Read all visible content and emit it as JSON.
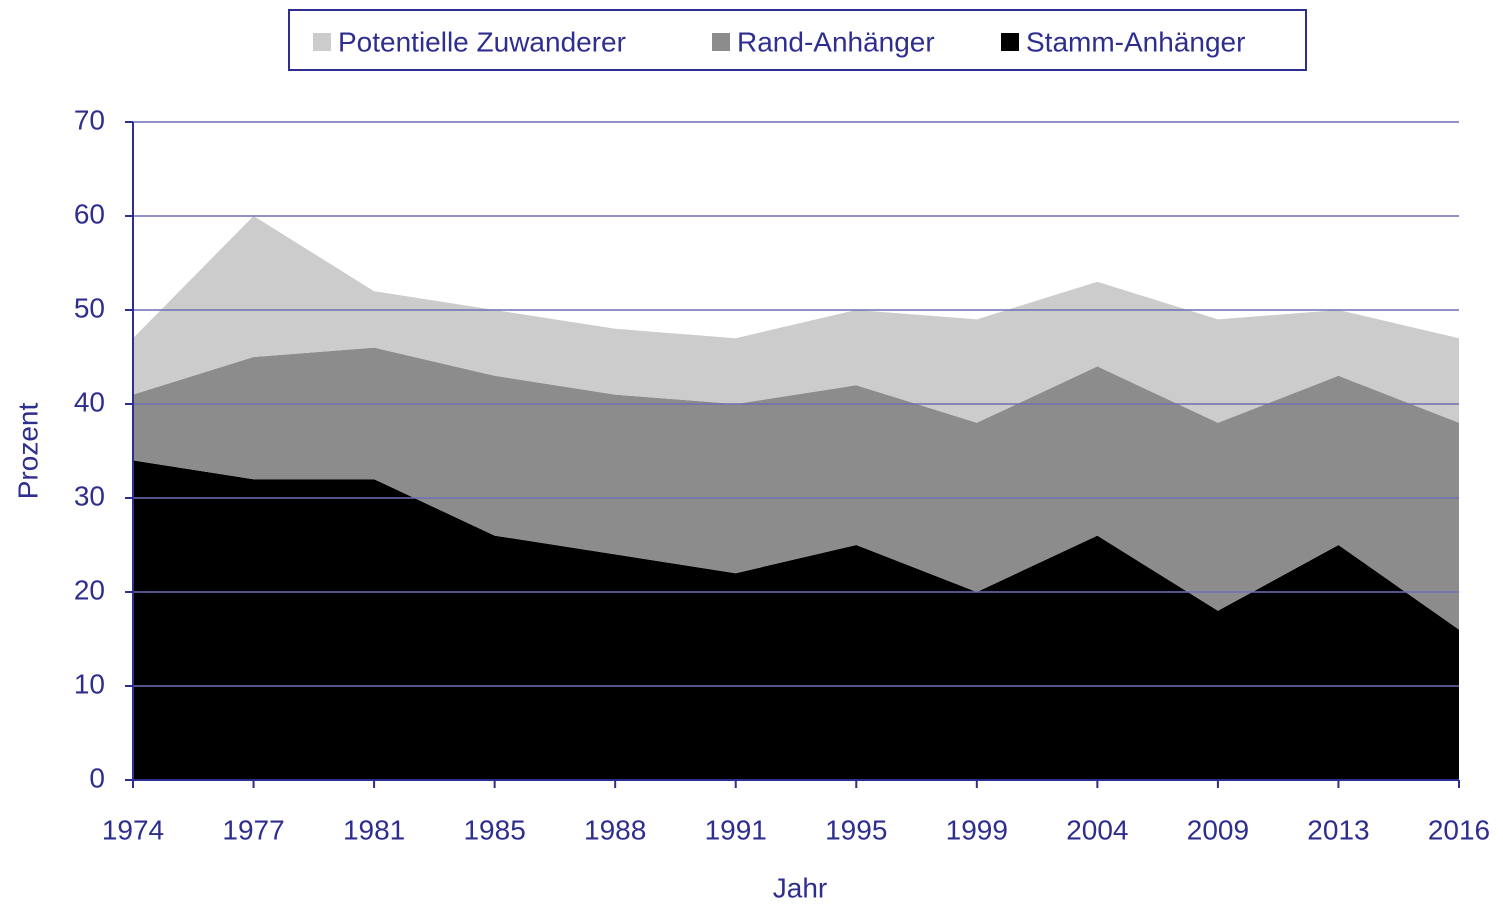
{
  "chart_data": {
    "type": "stacked_area",
    "xlabel": "Jahr",
    "ylabel": "Prozent",
    "categories": [
      "1974",
      "1977",
      "1981",
      "1985",
      "1988",
      "1991",
      "1995",
      "1999",
      "2004",
      "2009",
      "2013",
      "2016"
    ],
    "series": [
      {
        "name": "Stamm-Anhänger",
        "color": "#000000",
        "values": [
          34,
          32,
          32,
          26,
          24,
          22,
          25,
          20,
          26,
          18,
          25,
          16
        ]
      },
      {
        "name": "Rand-Anhänger",
        "color": "#8c8c8c",
        "values": [
          7,
          13,
          14,
          17,
          17,
          18,
          17,
          18,
          18,
          20,
          18,
          22
        ]
      },
      {
        "name": "Potentielle Zuwanderer",
        "color": "#cccccc",
        "values": [
          6,
          15,
          6,
          7,
          7,
          7,
          8,
          11,
          9,
          11,
          7,
          9
        ]
      }
    ],
    "ylim": [
      0,
      70
    ],
    "yticks": [
      0,
      10,
      20,
      30,
      40,
      50,
      60,
      70
    ],
    "grid": true
  }
}
